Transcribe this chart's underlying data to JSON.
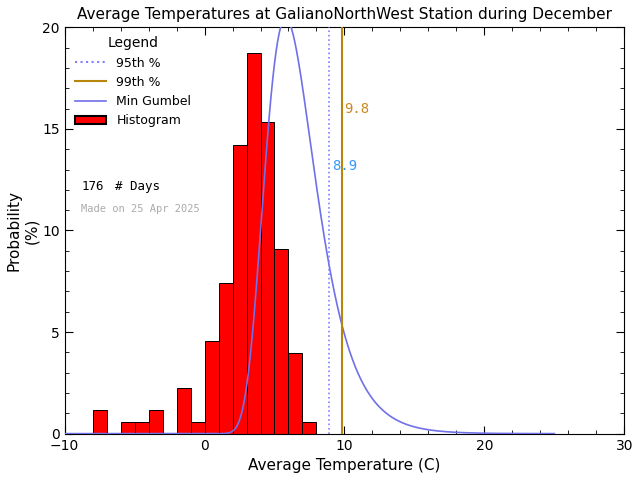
{
  "title": "Average Temperatures at GalianoNorthWest Station during December",
  "xlabel": "Average Temperature (C)",
  "ylabel": "Probability\n(%)",
  "xlim": [
    -10,
    30
  ],
  "ylim": [
    0,
    20
  ],
  "bin_edges": [
    -9,
    -8,
    -7,
    -6,
    -5,
    -4,
    -3,
    -2,
    -1,
    0,
    1,
    2,
    3,
    4,
    5,
    6,
    7,
    8,
    9,
    10,
    11
  ],
  "bin_heights": [
    0.0,
    1.14,
    0.0,
    0.57,
    0.57,
    1.14,
    0.0,
    2.27,
    0.57,
    4.55,
    7.39,
    14.2,
    18.75,
    15.34,
    9.09,
    3.98,
    0.57,
    0.0,
    0.0,
    0.0
  ],
  "percentile_95": 8.9,
  "percentile_99": 9.8,
  "n_days": 176,
  "gumbel_mu": 5.8,
  "gumbel_beta": 1.8,
  "bar_color": "#ff0000",
  "bar_edgecolor": "#000000",
  "gumbel_color": "#7070e8",
  "p95_color": "#8080ff",
  "p95_line_style": "dotted",
  "p99_color": "#b8860b",
  "p99_line_style": "solid",
  "p95_label_color": "#3399ff",
  "p99_label_color": "#cc8820",
  "made_on_color": "#aaaaaa",
  "made_on_text": "Made on 25 Apr 2025",
  "background_color": "#ffffff",
  "yticks": [
    0,
    5,
    10,
    15,
    20
  ],
  "xticks": [
    -10,
    0,
    10,
    20,
    30
  ],
  "legend_95_color": "#8080ff",
  "legend_99_color": "#b8860b",
  "legend_gumbel_color": "#7070e8"
}
